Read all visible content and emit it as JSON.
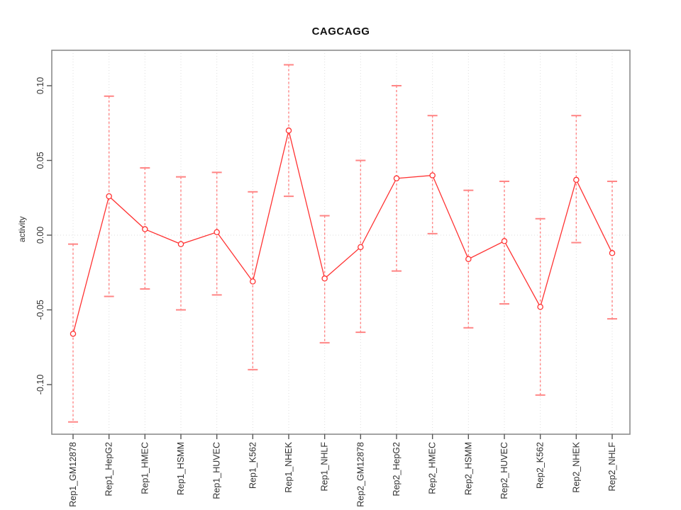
{
  "chart_data": {
    "type": "line",
    "subtype": "points-with-error-bars",
    "title": "CAGCAGG",
    "xlabel": "",
    "ylabel": "activity",
    "categories": [
      "Rep1_GM12878",
      "Rep1_HepG2",
      "Rep1_HMEC",
      "Rep1_HSMM",
      "Rep1_HUVEC",
      "Rep1_K562",
      "Rep1_NHEK",
      "Rep1_NHLF",
      "Rep2_GM12878",
      "Rep2_HepG2",
      "Rep2_HMEC",
      "Rep2_HSMM",
      "Rep2_HUVEC",
      "Rep2_K562",
      "Rep2_NHEK",
      "Rep2_NHLF"
    ],
    "values": [
      -0.066,
      0.026,
      0.004,
      -0.006,
      0.002,
      -0.031,
      0.07,
      -0.029,
      -0.008,
      0.038,
      0.04,
      -0.016,
      -0.004,
      -0.048,
      0.037,
      -0.012
    ],
    "error_low": [
      -0.125,
      -0.041,
      -0.036,
      -0.05,
      -0.04,
      -0.09,
      0.026,
      -0.072,
      -0.065,
      -0.024,
      0.001,
      -0.062,
      -0.046,
      -0.107,
      -0.005,
      -0.056
    ],
    "error_high": [
      -0.006,
      0.093,
      0.045,
      0.039,
      0.042,
      0.029,
      0.114,
      0.013,
      0.05,
      0.1,
      0.08,
      0.03,
      0.036,
      0.011,
      0.08,
      0.036
    ],
    "yticks": [
      -0.1,
      -0.05,
      0.0,
      0.05,
      0.1
    ],
    "ytick_labels": [
      "-0.10",
      "-0.05",
      "0.00",
      "0.05",
      "0.10"
    ],
    "ylim": [
      -0.1332,
      0.1237
    ],
    "grid": {
      "vertical_dotted_per_category": true,
      "horizontal_dotted_zero_line": true,
      "other_horizontal": false
    },
    "legend": {
      "visible": false
    },
    "point_marker": "open-circle",
    "colors": {
      "series": "#ff3333",
      "errorbar": "#ff8585",
      "gridline": "#dcdcdc",
      "frame": "#8c8c8c",
      "tick": "#555555",
      "text": "#303030"
    }
  }
}
